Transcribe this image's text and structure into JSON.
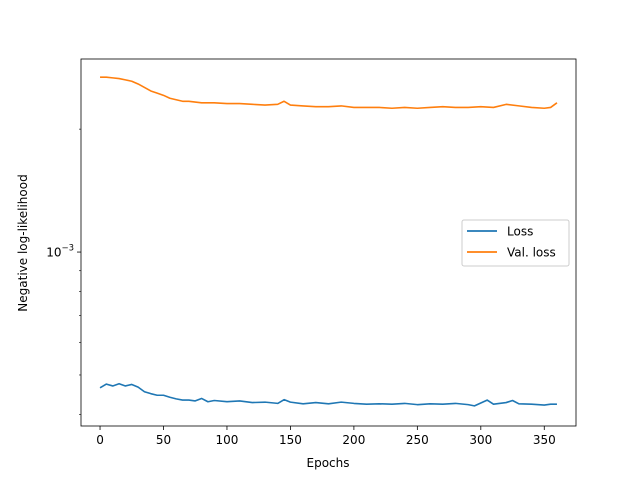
{
  "chart_data": {
    "type": "line",
    "title": "",
    "xlabel": "Epochs",
    "ylabel": "Negative log-likelihood",
    "x_scale": "linear",
    "y_scale": "log",
    "xlim": [
      -15,
      375
    ],
    "ylim": [
      0.000375,
      0.00297
    ],
    "x_ticks": [
      0,
      50,
      100,
      150,
      200,
      250,
      300,
      350
    ],
    "x_tick_labels": [
      "0",
      "50",
      "100",
      "150",
      "200",
      "250",
      "300",
      "350"
    ],
    "y_major_ticks": [
      0.001
    ],
    "y_major_tick_labels": [
      {
        "base": "10",
        "exponent": "−3"
      }
    ],
    "y_minor_ticks": [
      0.0004,
      0.0005,
      0.0006,
      0.0007,
      0.0008,
      0.0009,
      0.002
    ],
    "grid": false,
    "legend_position": "center-right",
    "series": [
      {
        "name": "Loss",
        "color": "#1f77b4",
        "points": [
          [
            0,
            0.000465
          ],
          [
            5,
            0.000475
          ],
          [
            10,
            0.00047
          ],
          [
            15,
            0.000476
          ],
          [
            20,
            0.00047
          ],
          [
            25,
            0.000474
          ],
          [
            30,
            0.000467
          ],
          [
            35,
            0.000455
          ],
          [
            40,
            0.00045
          ],
          [
            45,
            0.000446
          ],
          [
            50,
            0.000446
          ],
          [
            55,
            0.000441
          ],
          [
            60,
            0.000437
          ],
          [
            65,
            0.000434
          ],
          [
            70,
            0.000434
          ],
          [
            75,
            0.000432
          ],
          [
            80,
            0.000438
          ],
          [
            85,
            0.00043
          ],
          [
            90,
            0.000433
          ],
          [
            100,
            0.00043
          ],
          [
            110,
            0.000432
          ],
          [
            120,
            0.000428
          ],
          [
            130,
            0.000429
          ],
          [
            140,
            0.000426
          ],
          [
            145,
            0.000435
          ],
          [
            150,
            0.000429
          ],
          [
            160,
            0.000425
          ],
          [
            170,
            0.000428
          ],
          [
            180,
            0.000425
          ],
          [
            190,
            0.000429
          ],
          [
            200,
            0.000426
          ],
          [
            210,
            0.000424
          ],
          [
            220,
            0.000425
          ],
          [
            230,
            0.000424
          ],
          [
            240,
            0.000426
          ],
          [
            250,
            0.000423
          ],
          [
            260,
            0.000425
          ],
          [
            270,
            0.000424
          ],
          [
            280,
            0.000426
          ],
          [
            290,
            0.000423
          ],
          [
            295,
            0.00042
          ],
          [
            300,
            0.000427
          ],
          [
            305,
            0.000434
          ],
          [
            310,
            0.000424
          ],
          [
            320,
            0.000428
          ],
          [
            325,
            0.000433
          ],
          [
            330,
            0.000425
          ],
          [
            340,
            0.000424
          ],
          [
            350,
            0.000422
          ],
          [
            355,
            0.000424
          ],
          [
            360,
            0.000424
          ]
        ]
      },
      {
        "name": "Val. loss",
        "color": "#ff7f0e",
        "points": [
          [
            0,
            0.00268
          ],
          [
            5,
            0.00268
          ],
          [
            10,
            0.00267
          ],
          [
            15,
            0.00266
          ],
          [
            20,
            0.00264
          ],
          [
            25,
            0.00262
          ],
          [
            30,
            0.00258
          ],
          [
            35,
            0.00253
          ],
          [
            40,
            0.00248
          ],
          [
            45,
            0.00245
          ],
          [
            50,
            0.00242
          ],
          [
            55,
            0.00238
          ],
          [
            60,
            0.00236
          ],
          [
            65,
            0.00234
          ],
          [
            70,
            0.00234
          ],
          [
            80,
            0.00232
          ],
          [
            90,
            0.00232
          ],
          [
            100,
            0.00231
          ],
          [
            110,
            0.00231
          ],
          [
            120,
            0.0023
          ],
          [
            130,
            0.00229
          ],
          [
            140,
            0.0023
          ],
          [
            145,
            0.00234
          ],
          [
            150,
            0.00229
          ],
          [
            160,
            0.00228
          ],
          [
            170,
            0.00227
          ],
          [
            180,
            0.00227
          ],
          [
            190,
            0.00228
          ],
          [
            200,
            0.00226
          ],
          [
            210,
            0.00226
          ],
          [
            220,
            0.00226
          ],
          [
            230,
            0.00225
          ],
          [
            240,
            0.00226
          ],
          [
            250,
            0.00225
          ],
          [
            260,
            0.00226
          ],
          [
            270,
            0.00227
          ],
          [
            280,
            0.00226
          ],
          [
            290,
            0.00226
          ],
          [
            300,
            0.00227
          ],
          [
            310,
            0.00226
          ],
          [
            320,
            0.0023
          ],
          [
            330,
            0.00228
          ],
          [
            340,
            0.00226
          ],
          [
            350,
            0.00225
          ],
          [
            355,
            0.00226
          ],
          [
            360,
            0.00232
          ]
        ]
      }
    ]
  }
}
